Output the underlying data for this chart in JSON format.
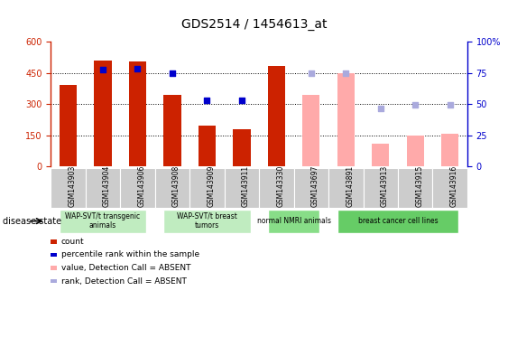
{
  "title": "GDS2514 / 1454613_at",
  "samples": [
    "GSM143903",
    "GSM143904",
    "GSM143906",
    "GSM143908",
    "GSM143909",
    "GSM143911",
    "GSM143330",
    "GSM143697",
    "GSM143891",
    "GSM143913",
    "GSM143915",
    "GSM143916"
  ],
  "count_present": [
    390,
    510,
    507,
    345,
    195,
    180,
    485,
    null,
    null,
    null,
    null,
    null
  ],
  "count_absent": [
    null,
    null,
    null,
    null,
    null,
    null,
    null,
    345,
    450,
    108,
    150,
    158
  ],
  "rank_present": [
    null,
    465,
    468,
    448,
    320,
    320,
    null,
    null,
    null,
    null,
    null,
    null
  ],
  "rank_absent": [
    null,
    null,
    null,
    null,
    null,
    null,
    null,
    448,
    450,
    280,
    295,
    295
  ],
  "group_defs": [
    {
      "label": "WAP-SVT/t transgenic\nanimals",
      "indices": [
        0,
        1,
        2
      ],
      "color": "#c0ecc0"
    },
    {
      "label": "WAP-SVT/t breast\ntumors",
      "indices": [
        3,
        4,
        5
      ],
      "color": "#c0ecc0"
    },
    {
      "label": "normal NMRI animals",
      "indices": [
        6,
        7
      ],
      "color": "#88dd88"
    },
    {
      "label": "breast cancer cell lines",
      "indices": [
        8,
        9,
        10,
        11
      ],
      "color": "#66cc66"
    }
  ],
  "ylim_left": [
    0,
    600
  ],
  "ylim_right": [
    0,
    100
  ],
  "yticks_left": [
    0,
    150,
    300,
    450,
    600
  ],
  "yticks_right": [
    0,
    25,
    50,
    75,
    100
  ],
  "color_bar_present": "#cc2200",
  "color_bar_absent": "#ffaaaa",
  "color_rank_present": "#0000cc",
  "color_rank_absent": "#aaaadd",
  "background_color": "#ffffff",
  "legend_items": [
    {
      "label": "count",
      "color": "#cc2200"
    },
    {
      "label": "percentile rank within the sample",
      "color": "#0000cc"
    },
    {
      "label": "value, Detection Call = ABSENT",
      "color": "#ffaaaa"
    },
    {
      "label": "rank, Detection Call = ABSENT",
      "color": "#aaaadd"
    }
  ],
  "tick_label_bg": "#cccccc",
  "disease_label": "disease state"
}
